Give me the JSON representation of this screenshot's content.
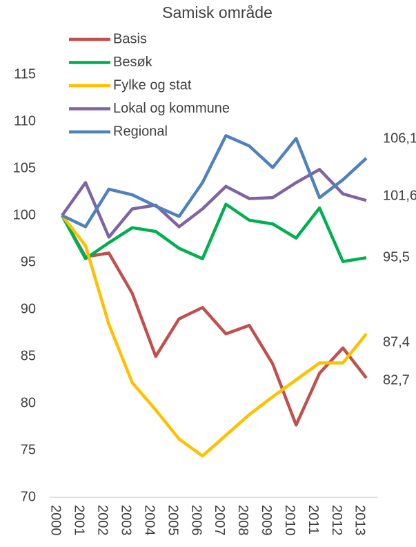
{
  "chart_data": {
    "type": "line",
    "title": "Samisk område",
    "categories": [
      "2000",
      "2001",
      "2002",
      "2003",
      "2004",
      "2005",
      "2006",
      "2007",
      "2008",
      "2009",
      "2010",
      "2011",
      "2012",
      "2013"
    ],
    "series": [
      {
        "name": "Basis",
        "color": "#c0504d",
        "values": [
          100,
          95.6,
          96.0,
          91.7,
          85.0,
          89.0,
          90.2,
          87.4,
          88.3,
          84.2,
          77.7,
          83.2,
          85.9,
          82.7
        ],
        "value_labels": [
          null,
          null,
          null,
          null,
          null,
          null,
          null,
          null,
          null,
          null,
          null,
          null,
          null,
          "82,7"
        ]
      },
      {
        "name": "Besøk",
        "color": "#00b050",
        "values": [
          100,
          95.4,
          97.1,
          98.7,
          98.3,
          96.5,
          95.4,
          101.2,
          99.5,
          99.1,
          97.6,
          100.8,
          95.1,
          95.5
        ],
        "value_labels": [
          null,
          null,
          null,
          null,
          null,
          null,
          null,
          null,
          null,
          null,
          null,
          null,
          null,
          "95,5"
        ]
      },
      {
        "name": "Fylke og stat",
        "color": "#ffc000",
        "values": [
          100,
          96.8,
          88.4,
          82.2,
          79.3,
          76.2,
          74.4,
          76.6,
          78.8,
          80.7,
          82.5,
          84.3,
          84.3,
          87.4
        ],
        "value_labels": [
          null,
          null,
          null,
          null,
          null,
          null,
          null,
          null,
          null,
          null,
          null,
          null,
          null,
          "87,4"
        ]
      },
      {
        "name": "Lokal og kommune",
        "color": "#8064a2",
        "values": [
          100,
          103.5,
          97.7,
          100.7,
          101.1,
          98.8,
          100.7,
          103.1,
          101.8,
          101.9,
          103.5,
          104.9,
          102.3,
          101.6
        ],
        "value_labels": [
          null,
          null,
          null,
          null,
          null,
          null,
          null,
          null,
          null,
          null,
          null,
          null,
          null,
          "101,6"
        ]
      },
      {
        "name": "Regional",
        "color": "#4f81bd",
        "values": [
          100,
          98.8,
          102.8,
          102.2,
          101.0,
          99.9,
          103.5,
          108.5,
          107.4,
          105.1,
          108.2,
          101.9,
          103.8,
          106.1
        ],
        "value_labels": [
          null,
          null,
          null,
          null,
          null,
          null,
          null,
          null,
          null,
          null,
          null,
          null,
          null,
          "106,1"
        ]
      }
    ],
    "ylim": [
      70,
      115
    ],
    "yticks": [
      70,
      75,
      80,
      85,
      90,
      95,
      100,
      105,
      110,
      115
    ],
    "legend": "upper left"
  }
}
